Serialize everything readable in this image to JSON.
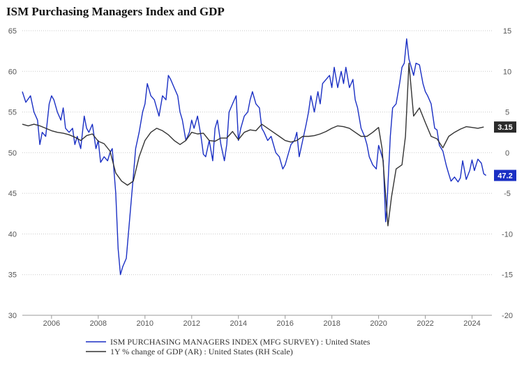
{
  "chart_data": {
    "type": "line",
    "title": "ISM Purchasing Managers Index and GDP",
    "x_ticks": [
      "2006",
      "2008",
      "2010",
      "2012",
      "2014",
      "2016",
      "2018",
      "2020",
      "2022",
      "2024"
    ],
    "x_range": [
      2004.75,
      2024.85
    ],
    "ylim_left": [
      30,
      65
    ],
    "yticks_left": [
      "30",
      "35",
      "40",
      "45",
      "50",
      "55",
      "60",
      "65"
    ],
    "ylim_right": [
      -20,
      15
    ],
    "yticks_right": [
      "-20",
      "-15",
      "-10",
      "-5",
      "0",
      "5",
      "10",
      "15"
    ],
    "grid": true,
    "legend_position": "bottom",
    "series": [
      {
        "name": "ISM PURCHASING MANAGERS INDEX (MFG SURVEY) : United States",
        "axis": "left",
        "color": "#1a2fc4",
        "last_value_label": "47.2",
        "points": [
          [
            2004.75,
            57.5
          ],
          [
            2004.9,
            56.2
          ],
          [
            2005.1,
            57.0
          ],
          [
            2005.25,
            55.0
          ],
          [
            2005.4,
            54.0
          ],
          [
            2005.5,
            51.0
          ],
          [
            2005.6,
            52.5
          ],
          [
            2005.75,
            52.0
          ],
          [
            2005.9,
            56.0
          ],
          [
            2006.0,
            57.0
          ],
          [
            2006.1,
            56.5
          ],
          [
            2006.25,
            55.0
          ],
          [
            2006.4,
            54.0
          ],
          [
            2006.5,
            55.5
          ],
          [
            2006.6,
            53.0
          ],
          [
            2006.75,
            52.5
          ],
          [
            2006.9,
            53.0
          ],
          [
            2007.0,
            51.0
          ],
          [
            2007.1,
            52.0
          ],
          [
            2007.25,
            50.5
          ],
          [
            2007.4,
            54.5
          ],
          [
            2007.5,
            53.0
          ],
          [
            2007.6,
            52.5
          ],
          [
            2007.75,
            53.5
          ],
          [
            2007.9,
            50.5
          ],
          [
            2008.0,
            51.5
          ],
          [
            2008.1,
            48.8
          ],
          [
            2008.25,
            49.5
          ],
          [
            2008.4,
            49.0
          ],
          [
            2008.5,
            50.0
          ],
          [
            2008.6,
            50.5
          ],
          [
            2008.75,
            45.0
          ],
          [
            2008.85,
            38.2
          ],
          [
            2008.95,
            35.0
          ],
          [
            2009.05,
            36.0
          ],
          [
            2009.2,
            37.0
          ],
          [
            2009.35,
            42.0
          ],
          [
            2009.5,
            47.0
          ],
          [
            2009.6,
            50.5
          ],
          [
            2009.75,
            52.5
          ],
          [
            2009.9,
            55.0
          ],
          [
            2010.0,
            56.0
          ],
          [
            2010.1,
            58.5
          ],
          [
            2010.25,
            57.0
          ],
          [
            2010.4,
            56.5
          ],
          [
            2010.5,
            55.5
          ],
          [
            2010.6,
            54.5
          ],
          [
            2010.75,
            57.0
          ],
          [
            2010.9,
            56.5
          ],
          [
            2011.0,
            59.5
          ],
          [
            2011.1,
            59.0
          ],
          [
            2011.25,
            58.0
          ],
          [
            2011.4,
            57.0
          ],
          [
            2011.5,
            55.0
          ],
          [
            2011.6,
            54.0
          ],
          [
            2011.75,
            51.5
          ],
          [
            2011.9,
            52.5
          ],
          [
            2012.0,
            54.0
          ],
          [
            2012.1,
            53.0
          ],
          [
            2012.25,
            54.5
          ],
          [
            2012.4,
            52.0
          ],
          [
            2012.5,
            49.8
          ],
          [
            2012.6,
            49.5
          ],
          [
            2012.75,
            51.5
          ],
          [
            2012.9,
            49.0
          ],
          [
            2013.0,
            53.0
          ],
          [
            2013.1,
            54.0
          ],
          [
            2013.25,
            51.0
          ],
          [
            2013.4,
            49.0
          ],
          [
            2013.5,
            51.0
          ],
          [
            2013.6,
            55.0
          ],
          [
            2013.75,
            56.0
          ],
          [
            2013.9,
            57.0
          ],
          [
            2014.0,
            51.5
          ],
          [
            2014.1,
            53.0
          ],
          [
            2014.25,
            54.5
          ],
          [
            2014.4,
            55.0
          ],
          [
            2014.5,
            56.5
          ],
          [
            2014.6,
            57.5
          ],
          [
            2014.75,
            56.0
          ],
          [
            2014.9,
            55.5
          ],
          [
            2015.0,
            53.0
          ],
          [
            2015.1,
            52.5
          ],
          [
            2015.25,
            51.5
          ],
          [
            2015.4,
            52.0
          ],
          [
            2015.5,
            51.0
          ],
          [
            2015.6,
            50.0
          ],
          [
            2015.75,
            49.5
          ],
          [
            2015.9,
            48.0
          ],
          [
            2016.0,
            48.5
          ],
          [
            2016.1,
            49.5
          ],
          [
            2016.25,
            51.0
          ],
          [
            2016.4,
            51.5
          ],
          [
            2016.5,
            52.5
          ],
          [
            2016.6,
            49.5
          ],
          [
            2016.75,
            51.5
          ],
          [
            2016.9,
            53.5
          ],
          [
            2017.0,
            55.0
          ],
          [
            2017.1,
            57.0
          ],
          [
            2017.25,
            55.0
          ],
          [
            2017.4,
            57.5
          ],
          [
            2017.5,
            56.0
          ],
          [
            2017.6,
            58.5
          ],
          [
            2017.75,
            59.0
          ],
          [
            2017.9,
            59.5
          ],
          [
            2018.0,
            58.0
          ],
          [
            2018.1,
            60.5
          ],
          [
            2018.25,
            58.0
          ],
          [
            2018.4,
            60.0
          ],
          [
            2018.5,
            58.5
          ],
          [
            2018.6,
            60.5
          ],
          [
            2018.75,
            58.0
          ],
          [
            2018.9,
            59.0
          ],
          [
            2019.0,
            56.5
          ],
          [
            2019.1,
            55.5
          ],
          [
            2019.25,
            53.0
          ],
          [
            2019.4,
            52.0
          ],
          [
            2019.5,
            51.0
          ],
          [
            2019.6,
            49.5
          ],
          [
            2019.75,
            48.5
          ],
          [
            2019.9,
            48.0
          ],
          [
            2020.0,
            50.9
          ],
          [
            2020.1,
            50.0
          ],
          [
            2020.2,
            49.0
          ],
          [
            2020.3,
            41.5
          ],
          [
            2020.35,
            43.0
          ],
          [
            2020.5,
            52.0
          ],
          [
            2020.6,
            55.5
          ],
          [
            2020.75,
            56.0
          ],
          [
            2020.9,
            58.5
          ],
          [
            2021.0,
            60.5
          ],
          [
            2021.1,
            61.0
          ],
          [
            2021.2,
            64.0
          ],
          [
            2021.3,
            61.5
          ],
          [
            2021.4,
            60.5
          ],
          [
            2021.5,
            59.5
          ],
          [
            2021.6,
            61.0
          ],
          [
            2021.75,
            60.8
          ],
          [
            2021.9,
            58.5
          ],
          [
            2022.0,
            57.5
          ],
          [
            2022.1,
            57.0
          ],
          [
            2022.25,
            56.0
          ],
          [
            2022.4,
            53.0
          ],
          [
            2022.5,
            52.8
          ],
          [
            2022.6,
            50.9
          ],
          [
            2022.75,
            50.2
          ],
          [
            2022.9,
            48.4
          ],
          [
            2023.0,
            47.4
          ],
          [
            2023.1,
            46.5
          ],
          [
            2023.25,
            47.0
          ],
          [
            2023.4,
            46.4
          ],
          [
            2023.5,
            46.9
          ],
          [
            2023.6,
            49.0
          ],
          [
            2023.75,
            46.7
          ],
          [
            2023.9,
            47.8
          ],
          [
            2024.0,
            49.1
          ],
          [
            2024.1,
            47.8
          ],
          [
            2024.25,
            49.2
          ],
          [
            2024.4,
            48.7
          ],
          [
            2024.5,
            47.4
          ],
          [
            2024.6,
            47.2
          ]
        ]
      },
      {
        "name": "1Y % change of GDP (AR) : United States (RH Scale)",
        "axis": "right",
        "color": "#333333",
        "last_value_label": "3.15",
        "points": [
          [
            2004.75,
            3.5
          ],
          [
            2005.0,
            3.3
          ],
          [
            2005.25,
            3.5
          ],
          [
            2005.5,
            3.3
          ],
          [
            2005.75,
            3.0
          ],
          [
            2006.0,
            2.7
          ],
          [
            2006.25,
            2.5
          ],
          [
            2006.5,
            2.4
          ],
          [
            2006.75,
            2.2
          ],
          [
            2007.0,
            1.9
          ],
          [
            2007.25,
            1.5
          ],
          [
            2007.5,
            2.1
          ],
          [
            2007.75,
            2.3
          ],
          [
            2008.0,
            1.4
          ],
          [
            2008.25,
            1.1
          ],
          [
            2008.5,
            0.2
          ],
          [
            2008.75,
            -2.5
          ],
          [
            2009.0,
            -3.5
          ],
          [
            2009.25,
            -4.0
          ],
          [
            2009.5,
            -3.5
          ],
          [
            2009.75,
            -0.5
          ],
          [
            2010.0,
            1.5
          ],
          [
            2010.25,
            2.5
          ],
          [
            2010.5,
            3.0
          ],
          [
            2010.75,
            2.7
          ],
          [
            2011.0,
            2.2
          ],
          [
            2011.25,
            1.5
          ],
          [
            2011.5,
            1.0
          ],
          [
            2011.75,
            1.5
          ],
          [
            2012.0,
            2.5
          ],
          [
            2012.25,
            2.3
          ],
          [
            2012.5,
            2.4
          ],
          [
            2012.75,
            1.5
          ],
          [
            2013.0,
            1.4
          ],
          [
            2013.25,
            1.8
          ],
          [
            2013.5,
            1.8
          ],
          [
            2013.75,
            2.6
          ],
          [
            2014.0,
            1.6
          ],
          [
            2014.25,
            2.5
          ],
          [
            2014.5,
            2.8
          ],
          [
            2014.75,
            2.7
          ],
          [
            2015.0,
            3.5
          ],
          [
            2015.25,
            3.0
          ],
          [
            2015.5,
            2.5
          ],
          [
            2015.75,
            2.0
          ],
          [
            2016.0,
            1.5
          ],
          [
            2016.25,
            1.3
          ],
          [
            2016.5,
            1.5
          ],
          [
            2016.75,
            2.0
          ],
          [
            2017.0,
            2.0
          ],
          [
            2017.25,
            2.1
          ],
          [
            2017.5,
            2.3
          ],
          [
            2017.75,
            2.6
          ],
          [
            2018.0,
            3.0
          ],
          [
            2018.25,
            3.3
          ],
          [
            2018.5,
            3.2
          ],
          [
            2018.75,
            3.0
          ],
          [
            2019.0,
            2.5
          ],
          [
            2019.25,
            2.0
          ],
          [
            2019.5,
            2.0
          ],
          [
            2019.75,
            2.5
          ],
          [
            2020.0,
            3.1
          ],
          [
            2020.15,
            0.5
          ],
          [
            2020.4,
            -9.0
          ],
          [
            2020.55,
            -5.5
          ],
          [
            2020.75,
            -2.0
          ],
          [
            2021.0,
            -1.5
          ],
          [
            2021.15,
            2.0
          ],
          [
            2021.3,
            11.0
          ],
          [
            2021.5,
            4.5
          ],
          [
            2021.75,
            5.5
          ],
          [
            2022.0,
            3.7
          ],
          [
            2022.25,
            2.0
          ],
          [
            2022.5,
            1.7
          ],
          [
            2022.75,
            0.6
          ],
          [
            2023.0,
            2.0
          ],
          [
            2023.25,
            2.5
          ],
          [
            2023.5,
            2.9
          ],
          [
            2023.75,
            3.2
          ],
          [
            2024.0,
            3.1
          ],
          [
            2024.25,
            3.0
          ],
          [
            2024.5,
            3.15
          ]
        ]
      }
    ]
  }
}
